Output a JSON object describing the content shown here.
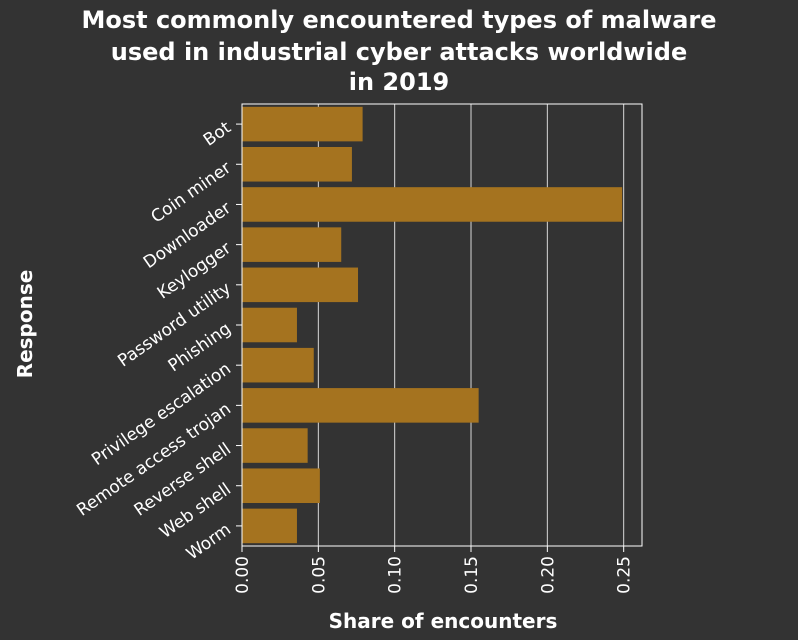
{
  "chart_data": {
    "type": "bar",
    "orientation": "horizontal",
    "title_lines": [
      "Most commonly encountered types of malware",
      "used in industrial cyber attacks worldwide",
      "in 2019"
    ],
    "xlabel": "Share of encounters",
    "ylabel": "Response",
    "categories": [
      "Bot",
      "Coin miner",
      "Downloader",
      "Keylogger",
      "Password utility",
      "Phishing",
      "Privilege escalation",
      "Remote access trojan",
      "Reverse shell",
      "Web shell",
      "Worm"
    ],
    "values": [
      0.079,
      0.072,
      0.249,
      0.065,
      0.076,
      0.036,
      0.047,
      0.155,
      0.043,
      0.051,
      0.036
    ],
    "xlim": [
      0,
      0.262
    ],
    "xticks": [
      0.0,
      0.05,
      0.1,
      0.15,
      0.2,
      0.25
    ],
    "xtick_labels": [
      "0.00",
      "0.05",
      "0.10",
      "0.15",
      "0.20",
      "0.25"
    ],
    "grid": "vertical",
    "bar_color": "#a5731f",
    "background_color": "#333333",
    "grid_color": "#d9d9d9"
  }
}
